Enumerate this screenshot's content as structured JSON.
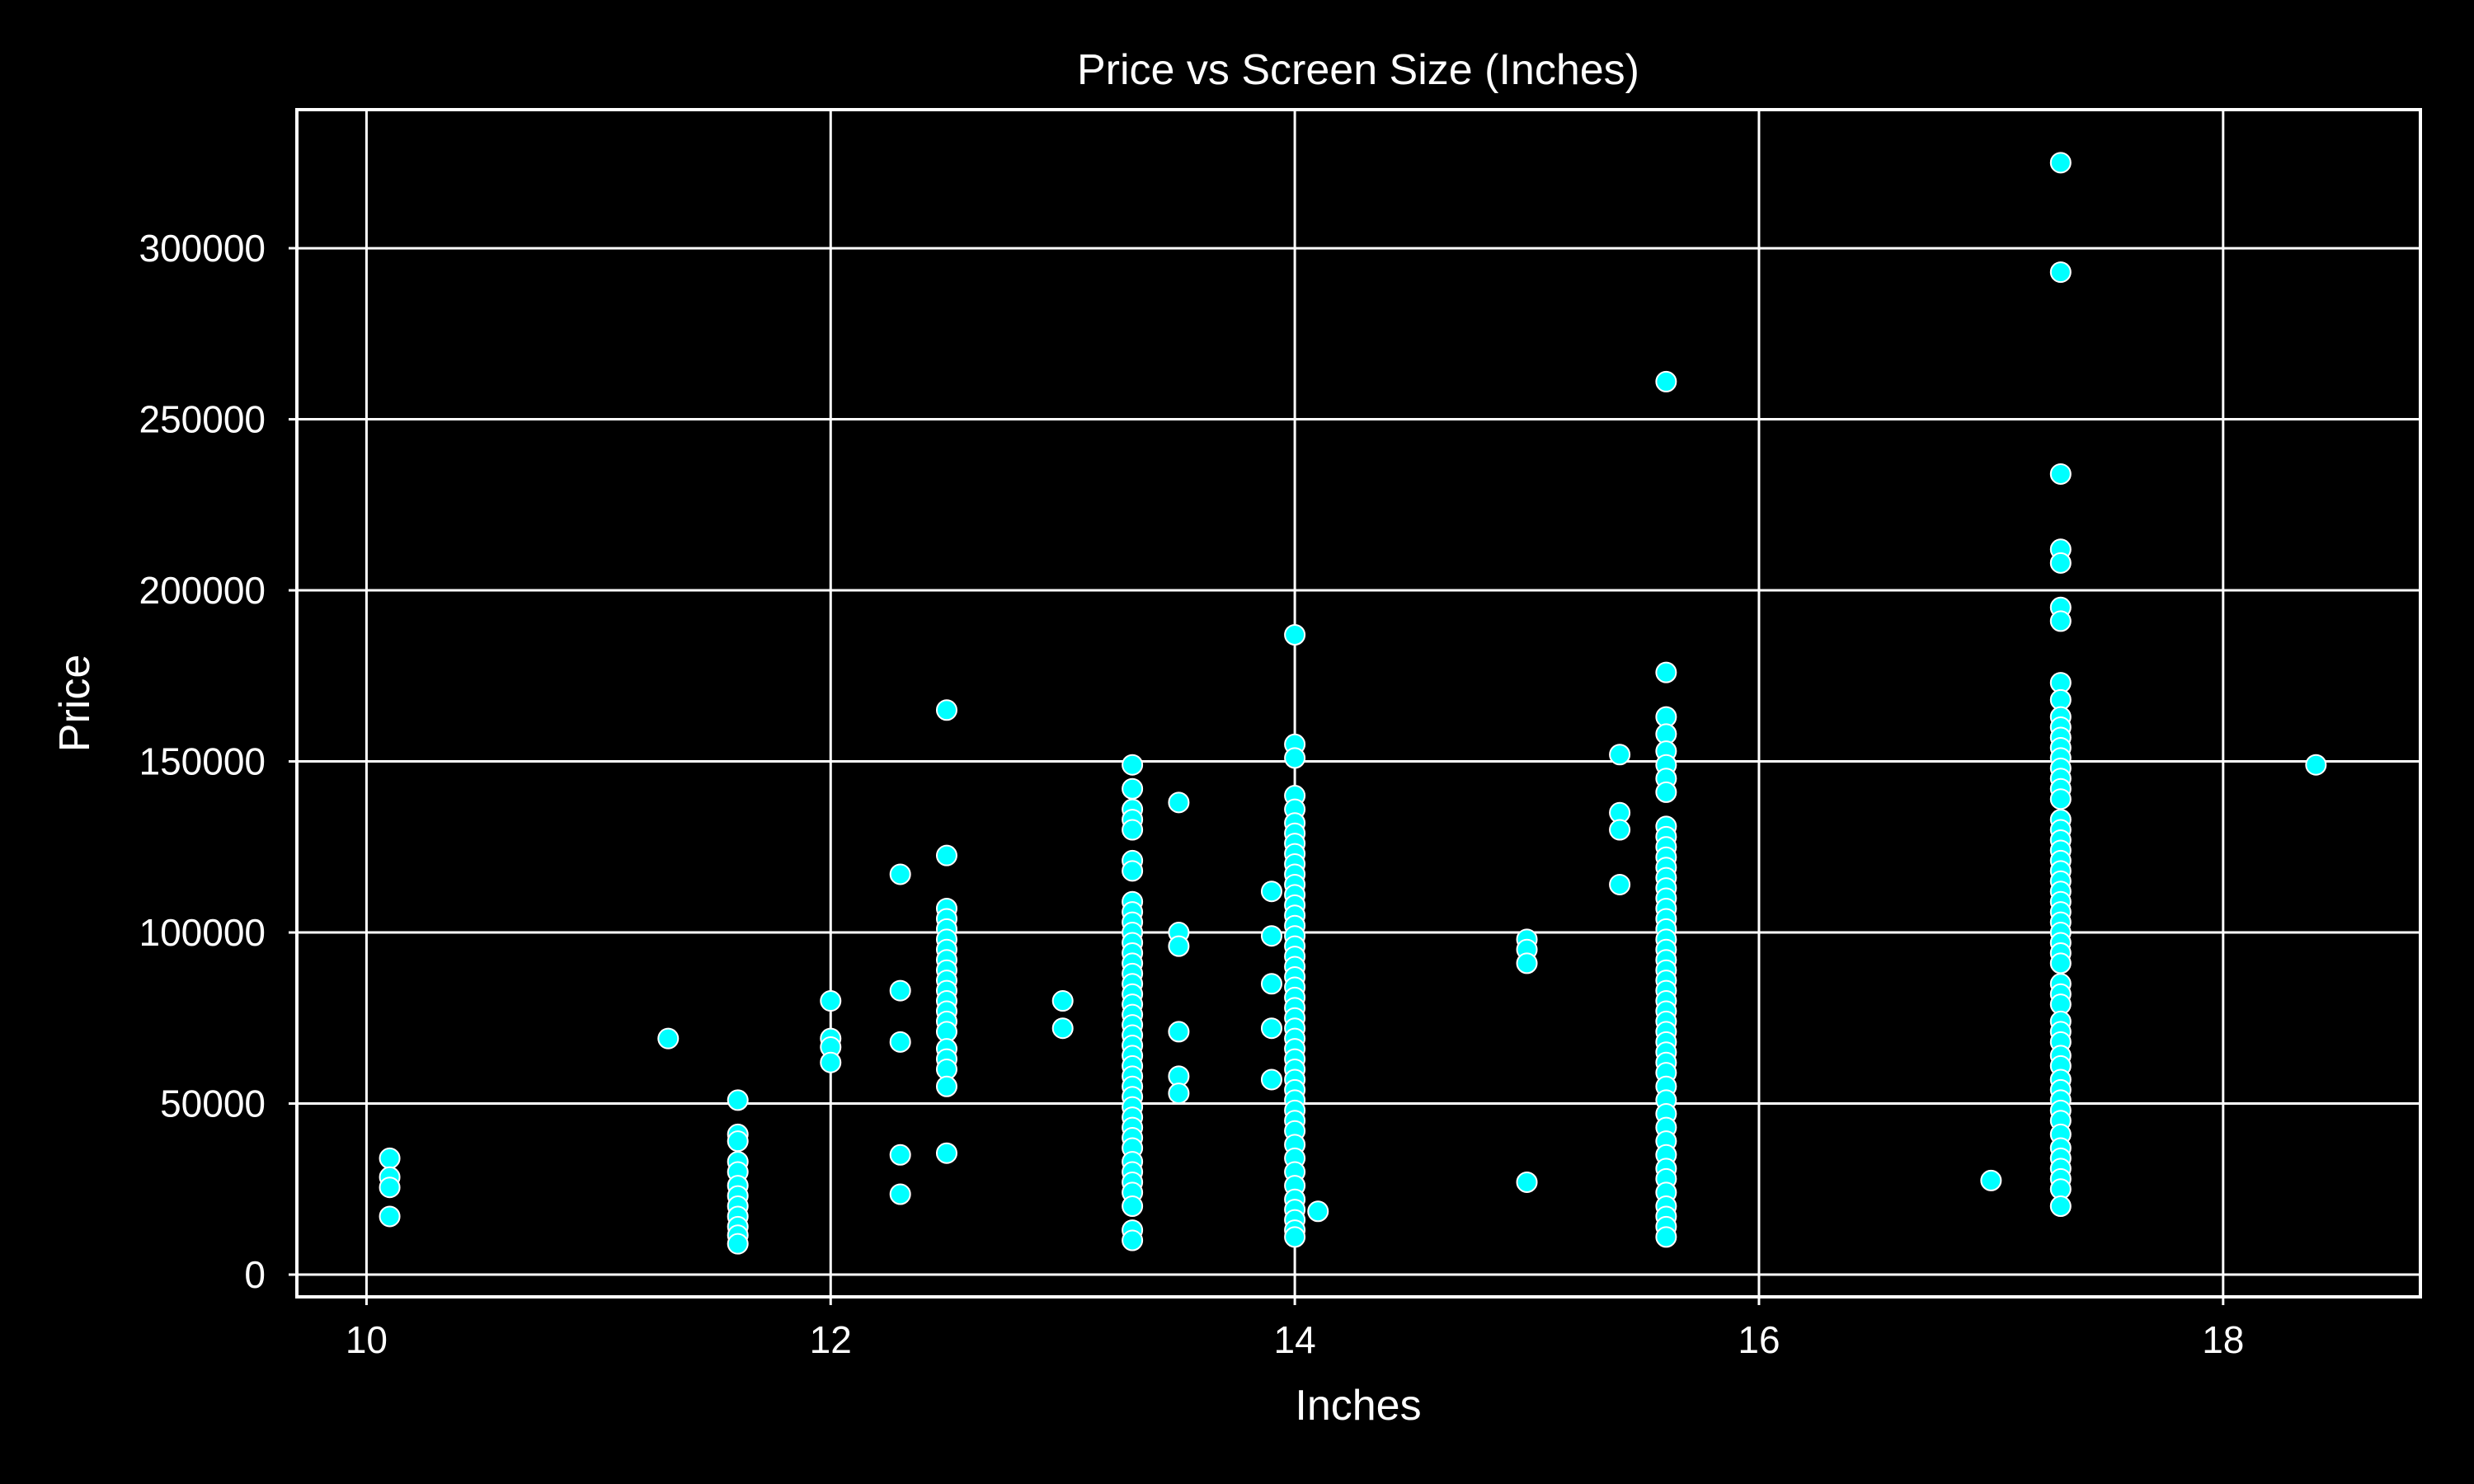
{
  "chart_data": {
    "type": "scatter",
    "title": "Price vs Screen Size (Inches)",
    "xlabel": "Inches",
    "ylabel": "Price",
    "xlim": [
      9.7,
      18.85
    ],
    "ylim": [
      -6500,
      340500
    ],
    "xticks": [
      10,
      12,
      14,
      16,
      18
    ],
    "yticks": [
      0,
      50000,
      100000,
      150000,
      200000,
      250000,
      300000
    ],
    "x_tick_labels": [
      "10",
      "12",
      "14",
      "16",
      "18"
    ],
    "y_tick_labels": [
      "0",
      "50000",
      "100000",
      "150000",
      "200000",
      "250000",
      "300000"
    ],
    "grid": true,
    "colors": {
      "background": "#000000",
      "point_fill": "#00ffff",
      "point_edge": "#ffffff",
      "foreground": "#ffffff"
    },
    "points": [
      {
        "x": 10.1,
        "y": 34000
      },
      {
        "x": 10.1,
        "y": 28500
      },
      {
        "x": 10.1,
        "y": 25500
      },
      {
        "x": 10.1,
        "y": 17000
      },
      {
        "x": 11.3,
        "y": 69000
      },
      {
        "x": 11.6,
        "y": 51000
      },
      {
        "x": 11.6,
        "y": 41000
      },
      {
        "x": 11.6,
        "y": 39000
      },
      {
        "x": 11.6,
        "y": 33000
      },
      {
        "x": 11.6,
        "y": 30000
      },
      {
        "x": 11.6,
        "y": 26000
      },
      {
        "x": 11.6,
        "y": 23000
      },
      {
        "x": 11.6,
        "y": 20000
      },
      {
        "x": 11.6,
        "y": 17000
      },
      {
        "x": 11.6,
        "y": 14000
      },
      {
        "x": 11.6,
        "y": 11500
      },
      {
        "x": 11.6,
        "y": 9000
      },
      {
        "x": 12.0,
        "y": 80000
      },
      {
        "x": 12.0,
        "y": 69000
      },
      {
        "x": 12.0,
        "y": 66500
      },
      {
        "x": 12.0,
        "y": 62000
      },
      {
        "x": 12.3,
        "y": 117000
      },
      {
        "x": 12.3,
        "y": 83000
      },
      {
        "x": 12.3,
        "y": 68000
      },
      {
        "x": 12.3,
        "y": 35000
      },
      {
        "x": 12.3,
        "y": 23500
      },
      {
        "x": 12.5,
        "y": 165000
      },
      {
        "x": 12.5,
        "y": 122500
      },
      {
        "x": 12.5,
        "y": 107000
      },
      {
        "x": 12.5,
        "y": 104000
      },
      {
        "x": 12.5,
        "y": 101000
      },
      {
        "x": 12.5,
        "y": 98000
      },
      {
        "x": 12.5,
        "y": 95000
      },
      {
        "x": 12.5,
        "y": 92000
      },
      {
        "x": 12.5,
        "y": 89000
      },
      {
        "x": 12.5,
        "y": 86000
      },
      {
        "x": 12.5,
        "y": 83000
      },
      {
        "x": 12.5,
        "y": 80000
      },
      {
        "x": 12.5,
        "y": 77000
      },
      {
        "x": 12.5,
        "y": 74000
      },
      {
        "x": 12.5,
        "y": 71000
      },
      {
        "x": 12.5,
        "y": 66000
      },
      {
        "x": 12.5,
        "y": 63000
      },
      {
        "x": 12.5,
        "y": 60000
      },
      {
        "x": 12.5,
        "y": 55000
      },
      {
        "x": 12.5,
        "y": 35500
      },
      {
        "x": 13.0,
        "y": 80000
      },
      {
        "x": 13.0,
        "y": 72000
      },
      {
        "x": 13.3,
        "y": 149000
      },
      {
        "x": 13.3,
        "y": 142000
      },
      {
        "x": 13.3,
        "y": 136000
      },
      {
        "x": 13.3,
        "y": 133000
      },
      {
        "x": 13.3,
        "y": 130000
      },
      {
        "x": 13.3,
        "y": 121000
      },
      {
        "x": 13.3,
        "y": 118000
      },
      {
        "x": 13.3,
        "y": 109000
      },
      {
        "x": 13.3,
        "y": 106000
      },
      {
        "x": 13.3,
        "y": 103000
      },
      {
        "x": 13.3,
        "y": 100000
      },
      {
        "x": 13.3,
        "y": 97000
      },
      {
        "x": 13.3,
        "y": 94000
      },
      {
        "x": 13.3,
        "y": 91000
      },
      {
        "x": 13.3,
        "y": 88000
      },
      {
        "x": 13.3,
        "y": 85000
      },
      {
        "x": 13.3,
        "y": 82000
      },
      {
        "x": 13.3,
        "y": 79000
      },
      {
        "x": 13.3,
        "y": 76000
      },
      {
        "x": 13.3,
        "y": 73000
      },
      {
        "x": 13.3,
        "y": 70000
      },
      {
        "x": 13.3,
        "y": 67000
      },
      {
        "x": 13.3,
        "y": 64000
      },
      {
        "x": 13.3,
        "y": 61000
      },
      {
        "x": 13.3,
        "y": 58000
      },
      {
        "x": 13.3,
        "y": 55000
      },
      {
        "x": 13.3,
        "y": 52000
      },
      {
        "x": 13.3,
        "y": 49000
      },
      {
        "x": 13.3,
        "y": 46000
      },
      {
        "x": 13.3,
        "y": 43000
      },
      {
        "x": 13.3,
        "y": 40000
      },
      {
        "x": 13.3,
        "y": 37000
      },
      {
        "x": 13.3,
        "y": 33000
      },
      {
        "x": 13.3,
        "y": 30000
      },
      {
        "x": 13.3,
        "y": 27000
      },
      {
        "x": 13.3,
        "y": 24000
      },
      {
        "x": 13.3,
        "y": 20000
      },
      {
        "x": 13.3,
        "y": 13000
      },
      {
        "x": 13.3,
        "y": 10000
      },
      {
        "x": 13.5,
        "y": 138000
      },
      {
        "x": 13.5,
        "y": 100000
      },
      {
        "x": 13.5,
        "y": 96000
      },
      {
        "x": 13.5,
        "y": 71000
      },
      {
        "x": 13.5,
        "y": 58000
      },
      {
        "x": 13.5,
        "y": 53000
      },
      {
        "x": 13.9,
        "y": 112000
      },
      {
        "x": 13.9,
        "y": 99000
      },
      {
        "x": 13.9,
        "y": 85000
      },
      {
        "x": 13.9,
        "y": 72000
      },
      {
        "x": 13.9,
        "y": 57000
      },
      {
        "x": 14.0,
        "y": 187000
      },
      {
        "x": 14.0,
        "y": 155000
      },
      {
        "x": 14.0,
        "y": 151000
      },
      {
        "x": 14.0,
        "y": 140000
      },
      {
        "x": 14.0,
        "y": 136000
      },
      {
        "x": 14.0,
        "y": 132000
      },
      {
        "x": 14.0,
        "y": 129000
      },
      {
        "x": 14.0,
        "y": 126000
      },
      {
        "x": 14.0,
        "y": 123000
      },
      {
        "x": 14.0,
        "y": 120000
      },
      {
        "x": 14.0,
        "y": 117000
      },
      {
        "x": 14.0,
        "y": 114000
      },
      {
        "x": 14.0,
        "y": 111000
      },
      {
        "x": 14.0,
        "y": 108000
      },
      {
        "x": 14.0,
        "y": 105000
      },
      {
        "x": 14.0,
        "y": 102000
      },
      {
        "x": 14.0,
        "y": 99000
      },
      {
        "x": 14.0,
        "y": 96000
      },
      {
        "x": 14.0,
        "y": 93000
      },
      {
        "x": 14.0,
        "y": 90000
      },
      {
        "x": 14.0,
        "y": 87000
      },
      {
        "x": 14.0,
        "y": 84000
      },
      {
        "x": 14.0,
        "y": 81000
      },
      {
        "x": 14.0,
        "y": 78000
      },
      {
        "x": 14.0,
        "y": 75000
      },
      {
        "x": 14.0,
        "y": 72000
      },
      {
        "x": 14.0,
        "y": 69000
      },
      {
        "x": 14.0,
        "y": 66000
      },
      {
        "x": 14.0,
        "y": 63000
      },
      {
        "x": 14.0,
        "y": 60000
      },
      {
        "x": 14.0,
        "y": 57000
      },
      {
        "x": 14.0,
        "y": 54000
      },
      {
        "x": 14.0,
        "y": 51000
      },
      {
        "x": 14.0,
        "y": 48000
      },
      {
        "x": 14.0,
        "y": 45000
      },
      {
        "x": 14.0,
        "y": 42000
      },
      {
        "x": 14.0,
        "y": 38000
      },
      {
        "x": 14.0,
        "y": 34000
      },
      {
        "x": 14.0,
        "y": 30000
      },
      {
        "x": 14.0,
        "y": 26000
      },
      {
        "x": 14.0,
        "y": 22000
      },
      {
        "x": 14.0,
        "y": 19000
      },
      {
        "x": 14.0,
        "y": 16000
      },
      {
        "x": 14.0,
        "y": 13000
      },
      {
        "x": 14.0,
        "y": 11000
      },
      {
        "x": 14.1,
        "y": 18500
      },
      {
        "x": 15.0,
        "y": 98000
      },
      {
        "x": 15.0,
        "y": 95000
      },
      {
        "x": 15.0,
        "y": 91000
      },
      {
        "x": 15.0,
        "y": 27000
      },
      {
        "x": 15.4,
        "y": 152000
      },
      {
        "x": 15.4,
        "y": 135000
      },
      {
        "x": 15.4,
        "y": 130000
      },
      {
        "x": 15.4,
        "y": 114000
      },
      {
        "x": 15.6,
        "y": 261000
      },
      {
        "x": 15.6,
        "y": 176000
      },
      {
        "x": 15.6,
        "y": 163000
      },
      {
        "x": 15.6,
        "y": 158000
      },
      {
        "x": 15.6,
        "y": 153000
      },
      {
        "x": 15.6,
        "y": 149000
      },
      {
        "x": 15.6,
        "y": 145000
      },
      {
        "x": 15.6,
        "y": 141000
      },
      {
        "x": 15.6,
        "y": 131000
      },
      {
        "x": 15.6,
        "y": 128000
      },
      {
        "x": 15.6,
        "y": 125000
      },
      {
        "x": 15.6,
        "y": 122000
      },
      {
        "x": 15.6,
        "y": 119000
      },
      {
        "x": 15.6,
        "y": 116000
      },
      {
        "x": 15.6,
        "y": 113000
      },
      {
        "x": 15.6,
        "y": 110000
      },
      {
        "x": 15.6,
        "y": 107000
      },
      {
        "x": 15.6,
        "y": 104000
      },
      {
        "x": 15.6,
        "y": 101000
      },
      {
        "x": 15.6,
        "y": 98000
      },
      {
        "x": 15.6,
        "y": 95000
      },
      {
        "x": 15.6,
        "y": 92000
      },
      {
        "x": 15.6,
        "y": 89000
      },
      {
        "x": 15.6,
        "y": 86000
      },
      {
        "x": 15.6,
        "y": 83000
      },
      {
        "x": 15.6,
        "y": 80000
      },
      {
        "x": 15.6,
        "y": 77000
      },
      {
        "x": 15.6,
        "y": 74000
      },
      {
        "x": 15.6,
        "y": 71000
      },
      {
        "x": 15.6,
        "y": 68000
      },
      {
        "x": 15.6,
        "y": 65000
      },
      {
        "x": 15.6,
        "y": 62000
      },
      {
        "x": 15.6,
        "y": 59000
      },
      {
        "x": 15.6,
        "y": 55000
      },
      {
        "x": 15.6,
        "y": 51000
      },
      {
        "x": 15.6,
        "y": 47000
      },
      {
        "x": 15.6,
        "y": 43000
      },
      {
        "x": 15.6,
        "y": 39000
      },
      {
        "x": 15.6,
        "y": 35000
      },
      {
        "x": 15.6,
        "y": 31000
      },
      {
        "x": 15.6,
        "y": 28000
      },
      {
        "x": 15.6,
        "y": 24000
      },
      {
        "x": 15.6,
        "y": 20000
      },
      {
        "x": 15.6,
        "y": 17000
      },
      {
        "x": 15.6,
        "y": 14000
      },
      {
        "x": 15.6,
        "y": 11000
      },
      {
        "x": 17.0,
        "y": 27500
      },
      {
        "x": 17.3,
        "y": 325000
      },
      {
        "x": 17.3,
        "y": 293000
      },
      {
        "x": 17.3,
        "y": 234000
      },
      {
        "x": 17.3,
        "y": 212000
      },
      {
        "x": 17.3,
        "y": 208000
      },
      {
        "x": 17.3,
        "y": 195000
      },
      {
        "x": 17.3,
        "y": 191000
      },
      {
        "x": 17.3,
        "y": 173000
      },
      {
        "x": 17.3,
        "y": 168000
      },
      {
        "x": 17.3,
        "y": 163000
      },
      {
        "x": 17.3,
        "y": 160000
      },
      {
        "x": 17.3,
        "y": 157000
      },
      {
        "x": 17.3,
        "y": 154000
      },
      {
        "x": 17.3,
        "y": 151000
      },
      {
        "x": 17.3,
        "y": 148000
      },
      {
        "x": 17.3,
        "y": 145000
      },
      {
        "x": 17.3,
        "y": 142000
      },
      {
        "x": 17.3,
        "y": 139000
      },
      {
        "x": 17.3,
        "y": 133000
      },
      {
        "x": 17.3,
        "y": 130000
      },
      {
        "x": 17.3,
        "y": 127000
      },
      {
        "x": 17.3,
        "y": 124000
      },
      {
        "x": 17.3,
        "y": 121000
      },
      {
        "x": 17.3,
        "y": 118000
      },
      {
        "x": 17.3,
        "y": 115000
      },
      {
        "x": 17.3,
        "y": 112000
      },
      {
        "x": 17.3,
        "y": 109000
      },
      {
        "x": 17.3,
        "y": 106000
      },
      {
        "x": 17.3,
        "y": 103000
      },
      {
        "x": 17.3,
        "y": 100000
      },
      {
        "x": 17.3,
        "y": 97000
      },
      {
        "x": 17.3,
        "y": 94000
      },
      {
        "x": 17.3,
        "y": 91000
      },
      {
        "x": 17.3,
        "y": 85000
      },
      {
        "x": 17.3,
        "y": 82000
      },
      {
        "x": 17.3,
        "y": 79000
      },
      {
        "x": 17.3,
        "y": 74000
      },
      {
        "x": 17.3,
        "y": 71000
      },
      {
        "x": 17.3,
        "y": 68000
      },
      {
        "x": 17.3,
        "y": 64000
      },
      {
        "x": 17.3,
        "y": 61000
      },
      {
        "x": 17.3,
        "y": 57000
      },
      {
        "x": 17.3,
        "y": 54000
      },
      {
        "x": 17.3,
        "y": 51000
      },
      {
        "x": 17.3,
        "y": 48000
      },
      {
        "x": 17.3,
        "y": 45000
      },
      {
        "x": 17.3,
        "y": 41000
      },
      {
        "x": 17.3,
        "y": 37000
      },
      {
        "x": 17.3,
        "y": 34000
      },
      {
        "x": 17.3,
        "y": 31000
      },
      {
        "x": 17.3,
        "y": 28000
      },
      {
        "x": 17.3,
        "y": 25000
      },
      {
        "x": 17.3,
        "y": 20000
      },
      {
        "x": 18.4,
        "y": 149000
      }
    ]
  }
}
